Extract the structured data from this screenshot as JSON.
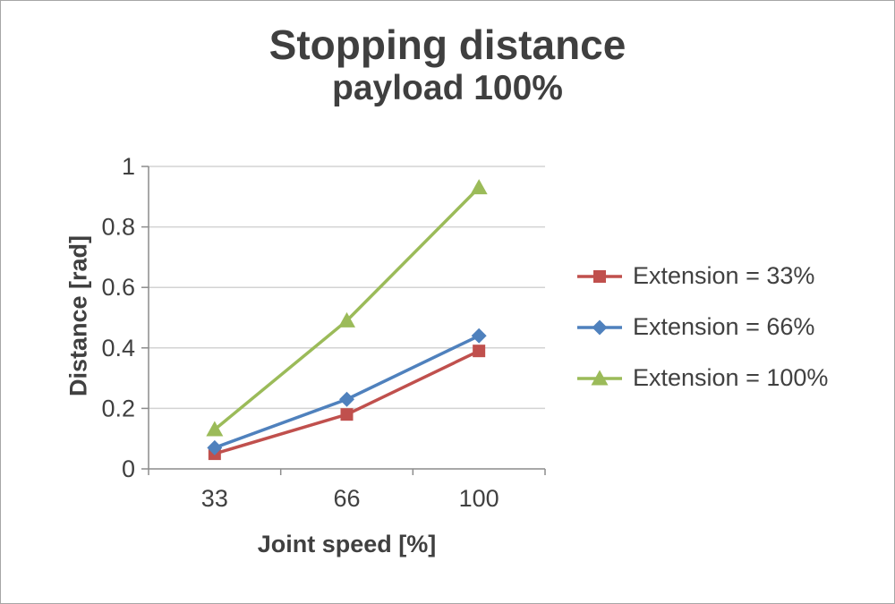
{
  "window": {
    "background": "#ffffff",
    "border_color": "#a6a6a6"
  },
  "chart_data": {
    "type": "line",
    "title": "Stopping distance",
    "subtitle": "payload 100%",
    "xlabel": "Joint speed [%]",
    "ylabel": "Distance [rad]",
    "categories": [
      "33",
      "66",
      "100"
    ],
    "series": [
      {
        "name": "Extension = 33%",
        "marker": "square",
        "color": "#c0504d",
        "values": [
          0.05,
          0.18,
          0.39
        ]
      },
      {
        "name": "Extension = 66%",
        "marker": "diamond",
        "color": "#4f81bd",
        "values": [
          0.07,
          0.23,
          0.44
        ]
      },
      {
        "name": "Extension = 100%",
        "marker": "triangle",
        "color": "#9bbb59",
        "values": [
          0.13,
          0.49,
          0.93
        ]
      }
    ],
    "ylim": [
      0,
      1
    ],
    "yticks": [
      {
        "value": 0,
        "label": "0"
      },
      {
        "value": 0.2,
        "label": "0.2"
      },
      {
        "value": 0.4,
        "label": "0.4"
      },
      {
        "value": 0.6,
        "label": "0.6"
      },
      {
        "value": 0.8,
        "label": "0.8"
      },
      {
        "value": 1,
        "label": "1"
      }
    ],
    "grid": true,
    "legend_position": "right",
    "colors": {
      "axis": "#8c8c8c",
      "gridline": "#d3d3d3",
      "text": "#404040",
      "title_text": "#3f3f3f"
    }
  }
}
